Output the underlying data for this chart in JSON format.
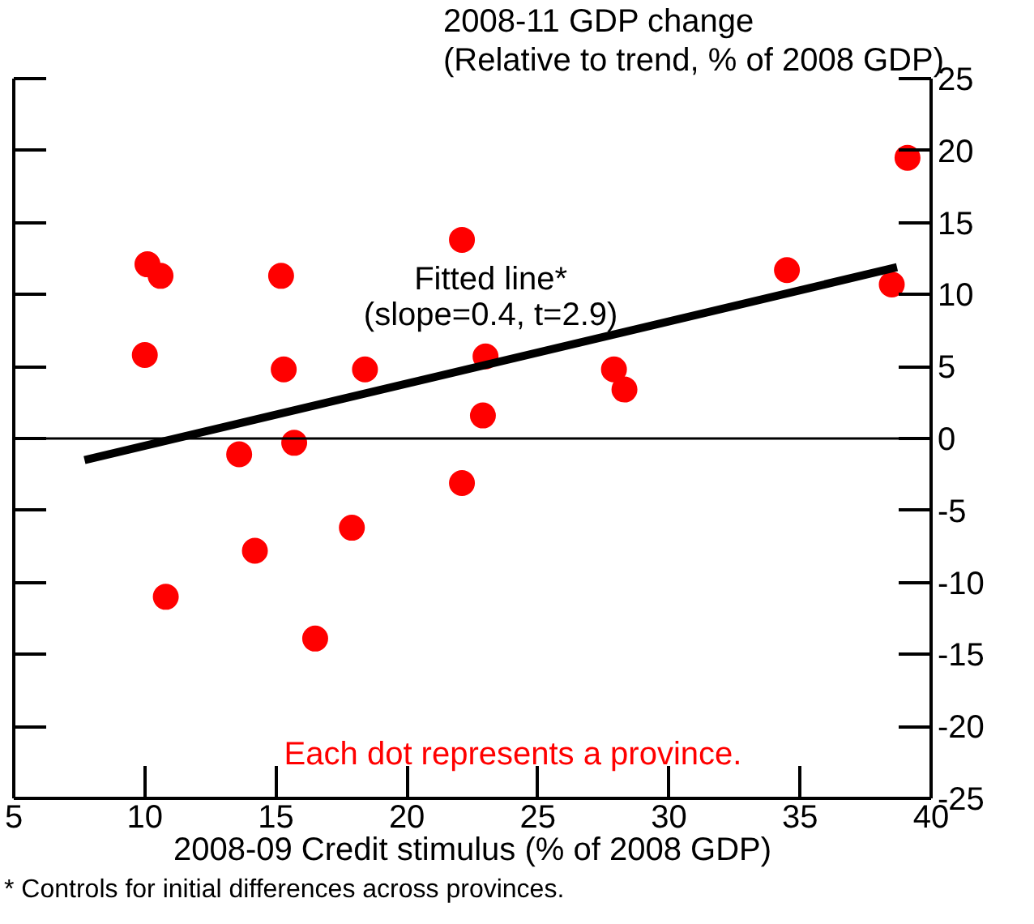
{
  "chart_data": {
    "type": "scatter",
    "xlabel": "2008-09 Credit stimulus (% of 2008 GDP)",
    "ylabel": "2008-11 GDP change\n(Relative to trend, % of 2008 GDP)",
    "xlim": [
      5,
      40
    ],
    "xticks": [
      5,
      10,
      15,
      20,
      25,
      30,
      35,
      40
    ],
    "ylim": [
      -25,
      25
    ],
    "yticks": [
      -25,
      -20,
      -15,
      -10,
      -5,
      0,
      5,
      10,
      15,
      20,
      25
    ],
    "grid": false,
    "legend": false,
    "marker": "circle",
    "series": [
      {
        "color": "#ff0000",
        "x": [
          10.1,
          10.6,
          10.0,
          15.2,
          15.3,
          18.4,
          22.1,
          23.0,
          22.9,
          27.9,
          28.3,
          34.5,
          38.5,
          39.1,
          13.6,
          15.7,
          22.1,
          17.9,
          14.2,
          10.8,
          16.5
        ],
        "values": [
          12.1,
          11.3,
          5.8,
          11.3,
          4.8,
          4.8,
          13.8,
          5.7,
          1.6,
          4.8,
          3.4,
          11.7,
          10.7,
          19.5,
          -1.1,
          -0.3,
          -3.1,
          -6.2,
          -7.8,
          -11.0,
          -13.9
        ]
      },
      {
        "type": "line",
        "marker": "none",
        "name": "Fitted line*",
        "color": "#000000",
        "x": [
          7.7,
          38.7
        ],
        "values": [
          -1.5,
          11.9
        ]
      }
    ],
    "ref_lines": [
      {
        "axis": "y",
        "value": 0,
        "color": "#000000"
      }
    ],
    "annotations": [
      "(slope=0.4, t=2.9)",
      "Each dot represents a province.",
      "*  Controls for initial differences across provinces."
    ]
  }
}
